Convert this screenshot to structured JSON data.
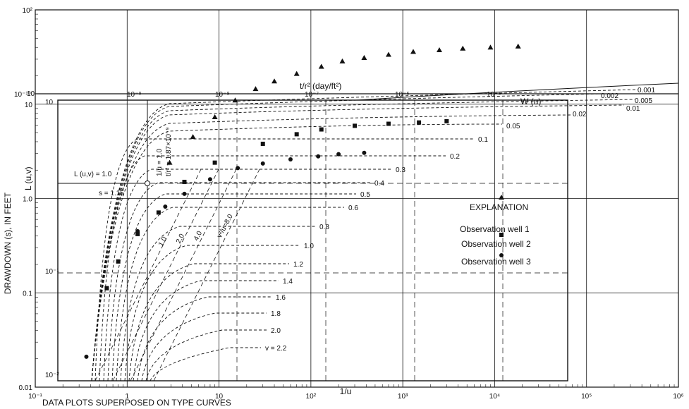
{
  "chart_data": {
    "type": "scatter",
    "xlabel": "1/u",
    "ylabel": "DRAWDOWN (s), IN FEET",
    "title": "DATA PLOTS SUPERPOSED ON TYPE CURVES",
    "x_scale": "log",
    "y_scale": "log",
    "xlim": [
      0.1,
      1000000
    ],
    "ylim": [
      0.01,
      100
    ],
    "x_ticks": [
      "10⁻¹",
      "1",
      "10",
      "10²",
      "10³",
      "10⁴",
      "10⁵",
      "10⁶"
    ],
    "y_ticks": [
      "0.01",
      "0.1",
      "1.0",
      "10",
      "10²"
    ],
    "overlay": {
      "top_axis_label": "t/r² (day/ft²)",
      "top_ticks": [
        "10⁻¹⁰",
        "10⁻⁹",
        "10⁻⁸",
        "10⁻⁷",
        "10⁻⁶",
        "10⁻⁵"
      ],
      "left_ticks": [
        "10⁻²",
        "10⁻¹",
        "10",
        "10"
      ],
      "left_axis_label": "L (u,v)",
      "wu_label": "W (u)",
      "v_labels": [
        "0.001",
        "0.002",
        "0.005",
        "0.01",
        "0.02",
        "0.05",
        "0.1",
        "0.2",
        "0.3",
        "0.4",
        "0.5",
        "0.6",
        "0.8",
        "1.0",
        "1.2",
        "1.4",
        "1.6",
        "1.8",
        "2.0",
        "v = 2.2"
      ],
      "v2u_labels": [
        "1.0",
        "2.0",
        "4.0",
        "v²/u=8.0"
      ],
      "match_point": {
        "vertical_label": "1/u = 1.0",
        "vertical_label2": "t/r² = 1.87×10⁻⁹",
        "horizontal_label": "L (u,v) = 1.0",
        "horizontal_label2": "s = 1.15"
      }
    },
    "legend": {
      "title": "EXPLANATION",
      "position": "right",
      "entries": [
        "Observation well 1",
        "Observation well 2",
        "Observation well 3"
      ]
    },
    "series": [
      {
        "name": "Observation well 1",
        "marker": "triangle",
        "points": [
          [
            2.9,
            2.4
          ],
          [
            5.2,
            4.5
          ],
          [
            9,
            7.3
          ],
          [
            15,
            11
          ],
          [
            25,
            14.5
          ],
          [
            40,
            17.5
          ],
          [
            70,
            21
          ],
          [
            130,
            25
          ],
          [
            220,
            28.5
          ],
          [
            380,
            31
          ],
          [
            700,
            33.5
          ],
          [
            1300,
            36
          ],
          [
            2500,
            37.5
          ],
          [
            4500,
            39
          ],
          [
            9000,
            40
          ],
          [
            18000,
            41
          ]
        ]
      },
      {
        "name": "Observation well 2",
        "marker": "square",
        "points": [
          [
            0.28,
            0.0099
          ],
          [
            0.6,
            0.112
          ],
          [
            0.8,
            0.215
          ],
          [
            1.3,
            0.42
          ],
          [
            2.2,
            0.71
          ],
          [
            4.2,
            1.5
          ],
          [
            9,
            2.4
          ],
          [
            30,
            3.8
          ],
          [
            70,
            4.8
          ],
          [
            130,
            5.4
          ],
          [
            300,
            5.9
          ],
          [
            700,
            6.2
          ],
          [
            1500,
            6.4
          ],
          [
            3000,
            6.6
          ]
        ]
      },
      {
        "name": "Observation well 3",
        "marker": "circle",
        "points": [
          [
            0.36,
            0.021
          ],
          [
            1.3,
            0.45
          ],
          [
            2.6,
            0.82
          ],
          [
            4.2,
            1.12
          ],
          [
            8,
            1.6
          ],
          [
            16,
            2.1
          ],
          [
            30,
            2.35
          ],
          [
            60,
            2.6
          ],
          [
            120,
            2.8
          ],
          [
            200,
            2.95
          ],
          [
            380,
            3.05
          ]
        ]
      }
    ],
    "colors": {
      "ink": "#111111",
      "background": "#ffffff"
    }
  }
}
